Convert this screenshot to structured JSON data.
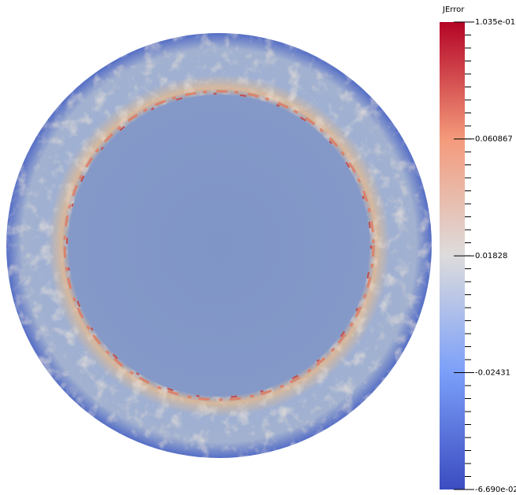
{
  "colorbar": {
    "title": "JError",
    "range": [
      -0.0669,
      0.1035
    ],
    "ticks": [
      {
        "value": 0.1035,
        "label": "1.035e-01"
      },
      0.060867,
      0.01828,
      -0.02431,
      {
        "value": -0.0669,
        "label": "-6.690e-02"
      }
    ]
  }
}
